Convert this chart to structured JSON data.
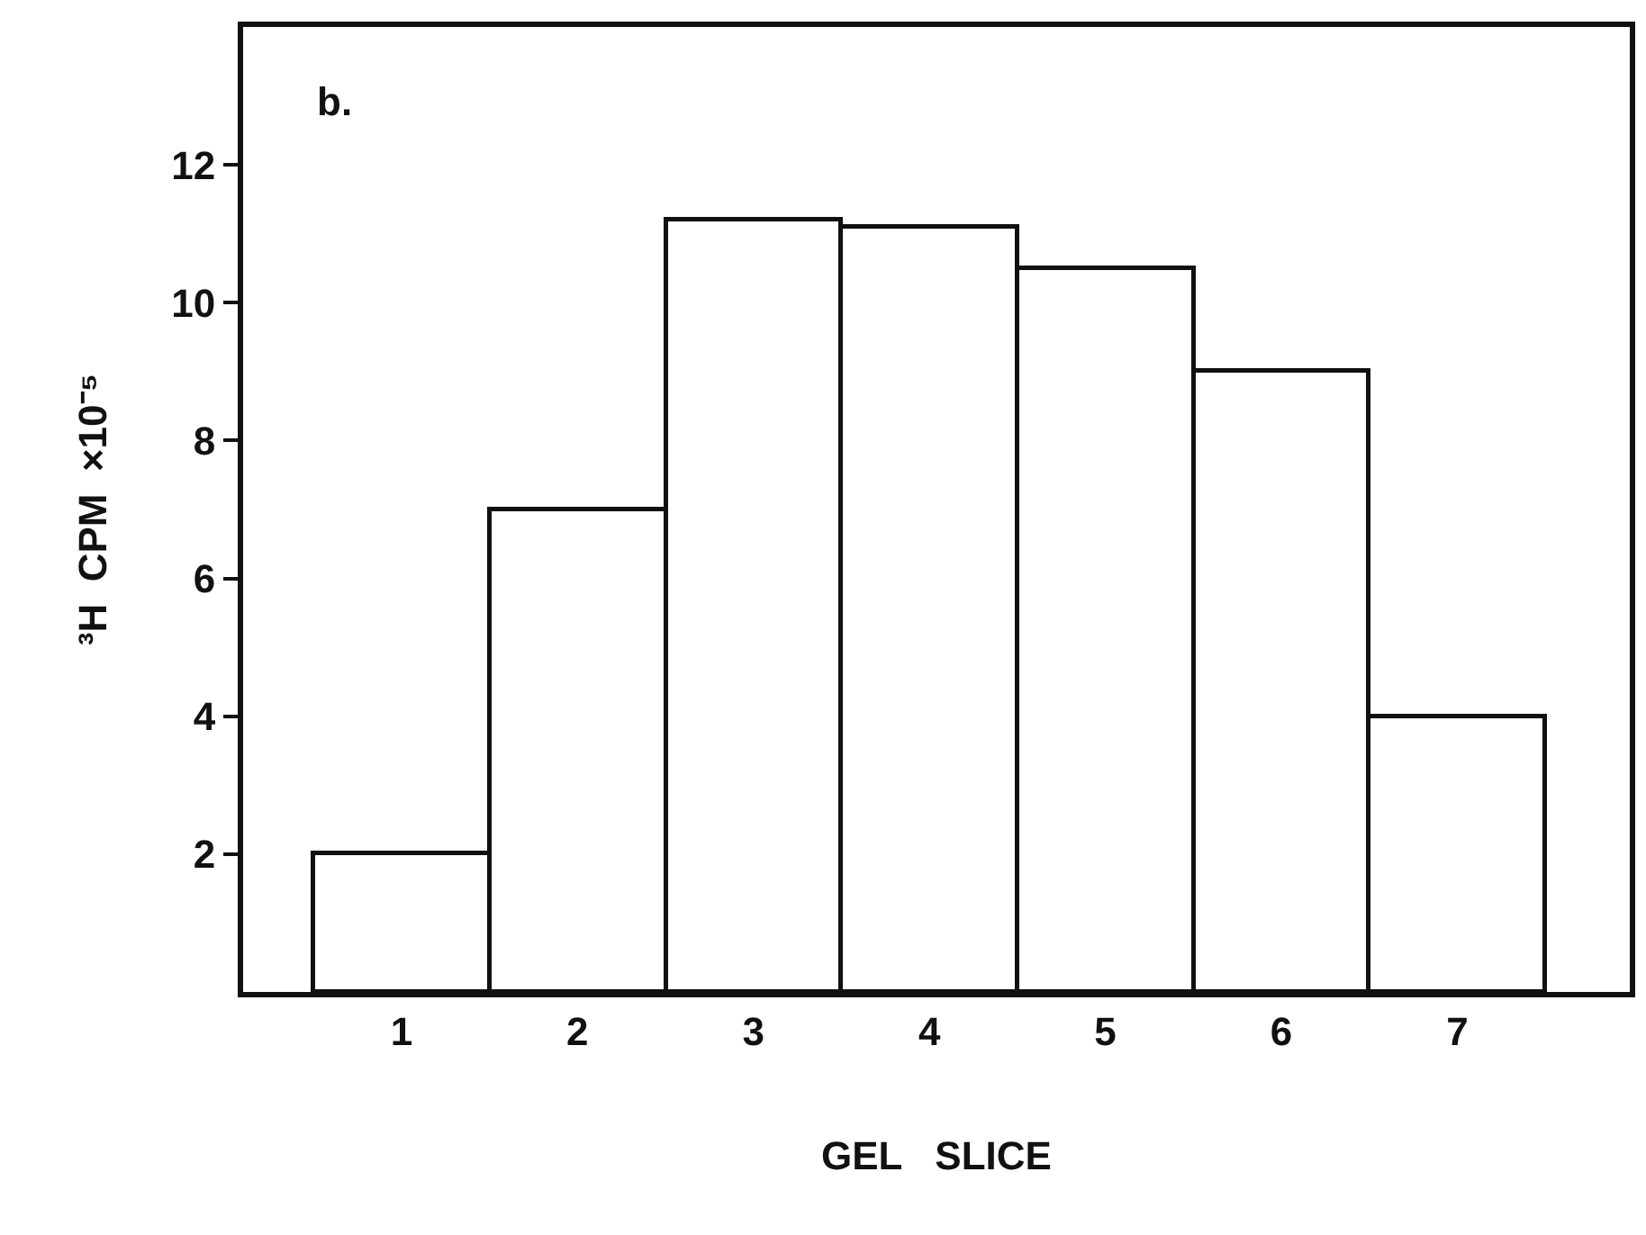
{
  "chart_data": {
    "type": "bar",
    "xlabel": "GEL   SLICE",
    "ylabel": "³H  CPM  ×10⁻⁵",
    "categories": [
      "1",
      "2",
      "3",
      "4",
      "5",
      "6",
      "7"
    ],
    "values": [
      2.0,
      7.0,
      11.2,
      11.1,
      10.5,
      9.0,
      4.0
    ],
    "color": "#ffffff",
    "ylim": [
      0,
      14
    ],
    "yticks": [
      2,
      4,
      6,
      8,
      10,
      12
    ],
    "annotations": [
      "b."
    ]
  }
}
